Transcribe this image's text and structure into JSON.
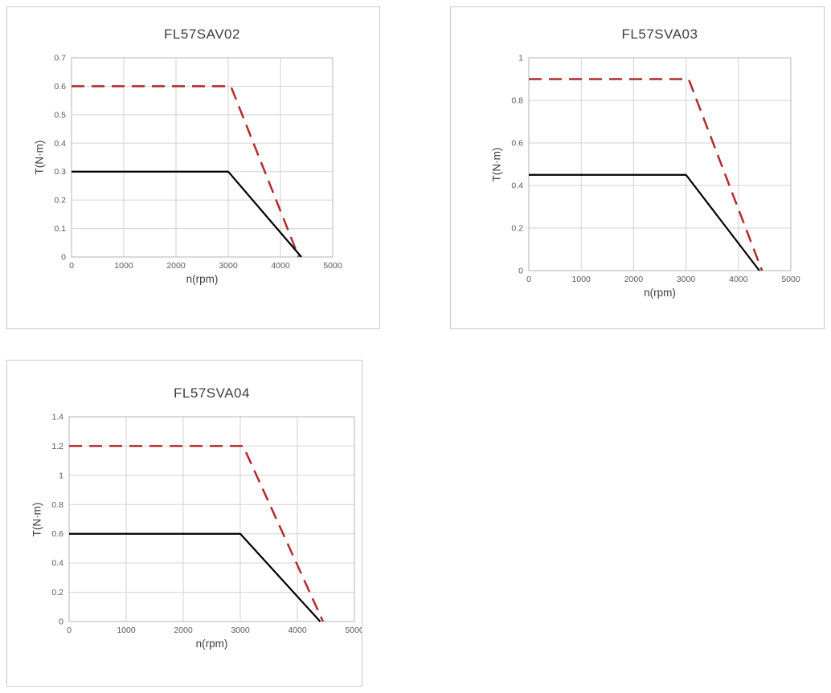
{
  "theme": {
    "grid_color": "#d2d2d2",
    "axis_color": "#b5b5b5",
    "tick_color": "#595959",
    "text_color": "#3d3d3d",
    "series_red": "#b2292e",
    "series_black": "#000000"
  },
  "chart_data": [
    {
      "type": "line",
      "title": "FL57SAV02",
      "xlabel": "n(rpm)",
      "ylabel": "T(N·m)",
      "xlim": [
        0,
        5000
      ],
      "ylim": [
        0,
        0.7
      ],
      "grid": true,
      "legend": "none",
      "xticks": {
        "values": [
          0,
          1000,
          2000,
          3000,
          4000,
          5000
        ],
        "labels": [
          "0",
          "1000",
          "2000",
          "3000",
          "4000",
          "5000"
        ]
      },
      "yticks": {
        "values": [
          0,
          0.1,
          0.2,
          0.3,
          0.4,
          0.5,
          0.6,
          0.7
        ],
        "labels": [
          "0",
          "0.1",
          "0.2",
          "0.3",
          "0.4",
          "0.5",
          "0.6",
          "0.7"
        ]
      },
      "series": [
        {
          "name": "peak-torque-line",
          "style": "dashed",
          "color": "#b2292e",
          "width": 2.5,
          "points": [
            [
              0,
              0.6
            ],
            [
              3050,
              0.6
            ],
            [
              4350,
              0
            ]
          ]
        },
        {
          "name": "rated-torque-line",
          "style": "solid",
          "color": "#000000",
          "width": 2.2,
          "points": [
            [
              0,
              0.3
            ],
            [
              3000,
              0.3
            ],
            [
              4400,
              0
            ]
          ]
        }
      ]
    },
    {
      "type": "line",
      "title": "FL57SVA03",
      "xlabel": "n(rpm)",
      "ylabel": "T(N·m)",
      "xlim": [
        0,
        5000
      ],
      "ylim": [
        0,
        1
      ],
      "grid": true,
      "legend": "none",
      "xticks": {
        "values": [
          0,
          1000,
          2000,
          3000,
          4000,
          5000
        ],
        "labels": [
          "0",
          "1000",
          "2000",
          "3000",
          "4000",
          "5000"
        ]
      },
      "yticks": {
        "values": [
          0,
          0.2,
          0.4,
          0.6,
          0.8,
          1
        ],
        "labels": [
          "0",
          "0.2",
          "0.4",
          "0.6",
          "0.8",
          "1"
        ]
      },
      "series": [
        {
          "name": "peak-torque-line",
          "style": "dashed",
          "color": "#b2292e",
          "width": 2.5,
          "points": [
            [
              0,
              0.9
            ],
            [
              3050,
              0.9
            ],
            [
              4450,
              0
            ]
          ]
        },
        {
          "name": "rated-torque-line",
          "style": "solid",
          "color": "#000000",
          "width": 2.2,
          "points": [
            [
              0,
              0.45
            ],
            [
              3000,
              0.45
            ],
            [
              4400,
              0
            ]
          ]
        }
      ]
    },
    {
      "type": "line",
      "title": "FL57SVA04",
      "xlabel": "n(rpm)",
      "ylabel": "T(N·m)",
      "xlim": [
        0,
        5000
      ],
      "ylim": [
        0,
        1.4
      ],
      "grid": true,
      "legend": "none",
      "xticks": {
        "values": [
          0,
          1000,
          2000,
          3000,
          4000,
          5000
        ],
        "labels": [
          "0",
          "1000",
          "2000",
          "3000",
          "4000",
          "5000"
        ]
      },
      "yticks": {
        "values": [
          0,
          0.2,
          0.4,
          0.6,
          0.8,
          1,
          1.2,
          1.4
        ],
        "labels": [
          "0",
          "0.2",
          "0.4",
          "0.6",
          "0.8",
          "1",
          "1.2",
          "1.4"
        ]
      },
      "series": [
        {
          "name": "peak-torque-line",
          "style": "dashed",
          "color": "#b2292e",
          "width": 2.5,
          "points": [
            [
              0,
              1.2
            ],
            [
              3050,
              1.2
            ],
            [
              4450,
              0
            ]
          ]
        },
        {
          "name": "rated-torque-line",
          "style": "solid",
          "color": "#000000",
          "width": 2.2,
          "points": [
            [
              0,
              0.6
            ],
            [
              3000,
              0.6
            ],
            [
              4400,
              0
            ]
          ]
        }
      ]
    }
  ]
}
